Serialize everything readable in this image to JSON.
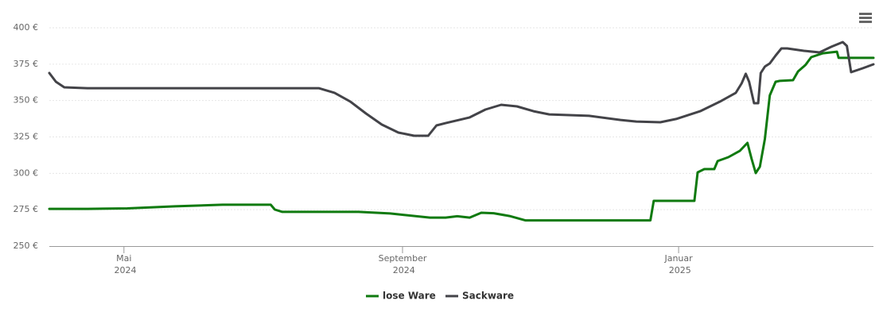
{
  "chart_data": {
    "type": "line",
    "xlim": [
      2024.241,
      2025.235
    ],
    "xticks": [
      {
        "value": 2024.331,
        "label": "Mai 2024"
      },
      {
        "value": 2024.667,
        "label": "September 2024"
      },
      {
        "value": 2025.0,
        "label": "Januar 2025"
      }
    ],
    "ylim": [
      250,
      400
    ],
    "yticks": [
      {
        "value": 250,
        "label": "250 €"
      },
      {
        "value": 275,
        "label": "275 €"
      },
      {
        "value": 300,
        "label": "300 €"
      },
      {
        "value": 325,
        "label": "325 €"
      },
      {
        "value": 350,
        "label": "350 €"
      },
      {
        "value": 375,
        "label": "375 €"
      },
      {
        "value": 400,
        "label": "400 €"
      }
    ],
    "grid": true,
    "legend": "bottom",
    "series": [
      {
        "name": "lose Ware",
        "color": "#0f7a0f",
        "x": [
          2024.241,
          2024.287,
          2024.335,
          2024.393,
          2024.45,
          2024.508,
          2024.513,
          2024.522,
          2024.614,
          2024.652,
          2024.7,
          2024.719,
          2024.733,
          2024.748,
          2024.762,
          2024.777,
          2024.796,
          2024.815,
          2024.966,
          2024.97,
          2025.019,
          2025.023,
          2025.031,
          2025.043,
          2025.047,
          2025.06,
          2025.074,
          2025.083,
          2025.088,
          2025.093,
          2025.098,
          2025.104,
          2025.11,
          2025.117,
          2025.122,
          2025.138,
          2025.144,
          2025.153,
          2025.16,
          2025.174,
          2025.191,
          2025.193,
          2025.235
        ],
        "values": [
          275.6,
          275.6,
          275.9,
          277.3,
          278.4,
          278.4,
          275.1,
          273.5,
          273.5,
          272.4,
          269.6,
          269.6,
          270.5,
          269.6,
          272.9,
          272.6,
          270.7,
          267.7,
          267.7,
          281.1,
          281.1,
          300.7,
          302.9,
          302.9,
          308.4,
          311.1,
          315.5,
          320.9,
          310.0,
          300.2,
          304.5,
          323.6,
          353.6,
          362.9,
          363.5,
          364.0,
          370.0,
          374.4,
          379.8,
          382.5,
          383.6,
          379.3,
          379.3
        ]
      },
      {
        "name": "Sackware",
        "color": "#434348",
        "x": [
          2024.241,
          2024.249,
          2024.259,
          2024.287,
          2024.566,
          2024.585,
          2024.604,
          2024.623,
          2024.642,
          2024.662,
          2024.681,
          2024.698,
          2024.708,
          2024.719,
          2024.748,
          2024.767,
          2024.786,
          2024.805,
          2024.825,
          2024.844,
          2024.892,
          2024.93,
          2024.949,
          2024.978,
          2024.997,
          2025.026,
          2025.05,
          2025.069,
          2025.076,
          2025.081,
          2025.085,
          2025.091,
          2025.096,
          2025.099,
          2025.104,
          2025.11,
          2025.117,
          2025.124,
          2025.131,
          2025.151,
          2025.17,
          2025.184,
          2025.198,
          2025.203,
          2025.208,
          2025.222,
          2025.235
        ],
        "values": [
          368.9,
          362.9,
          359.1,
          358.5,
          358.5,
          355.3,
          349.3,
          341.1,
          333.5,
          328.0,
          325.8,
          325.8,
          332.9,
          334.5,
          338.4,
          343.8,
          347.1,
          346.0,
          342.7,
          340.5,
          339.5,
          336.7,
          335.6,
          335.1,
          337.3,
          342.7,
          349.3,
          355.3,
          361.8,
          368.4,
          362.9,
          348.2,
          348.2,
          368.9,
          373.3,
          375.5,
          380.9,
          385.8,
          385.8,
          384.2,
          383.1,
          386.9,
          390.2,
          387.5,
          369.5,
          372.2,
          374.9
        ]
      }
    ]
  }
}
